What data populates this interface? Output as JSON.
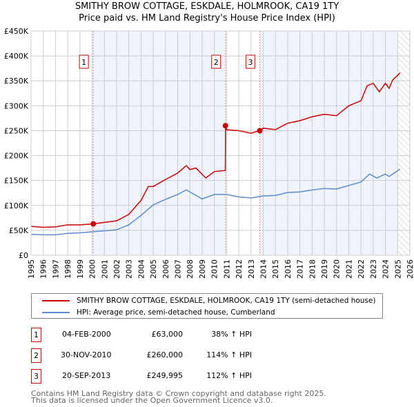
{
  "chart_data": {
    "type": "line",
    "title": "SMITHY BROW COTTAGE, ESKDALE, HOLMROOK, CA19 1TY",
    "subtitle": "Price paid vs. HM Land Registry's House Price Index (HPI)",
    "xlim": [
      1995,
      2026
    ],
    "ylim": [
      0,
      450000
    ],
    "x_ticks": [
      "1995",
      "1996",
      "1997",
      "1998",
      "1999",
      "2000",
      "2001",
      "2002",
      "2003",
      "2004",
      "2005",
      "2006",
      "2007",
      "2008",
      "2009",
      "2010",
      "2011",
      "2012",
      "2013",
      "2014",
      "2015",
      "2016",
      "2017",
      "2018",
      "2019",
      "2020",
      "2021",
      "2022",
      "2023",
      "2024",
      "2025",
      "2026"
    ],
    "y_ticks": [
      {
        "v": 0,
        "label": "£0"
      },
      {
        "v": 50000,
        "label": "£50K"
      },
      {
        "v": 100000,
        "label": "£100K"
      },
      {
        "v": 150000,
        "label": "£150K"
      },
      {
        "v": 200000,
        "label": "£200K"
      },
      {
        "v": 250000,
        "label": "£250K"
      },
      {
        "v": 300000,
        "label": "£300K"
      },
      {
        "v": 350000,
        "label": "£350K"
      },
      {
        "v": 400000,
        "label": "£400K"
      },
      {
        "v": 450000,
        "label": "£450K"
      }
    ],
    "grid": true,
    "series": [
      {
        "name": "SMITHY BROW COTTAGE, ESKDALE, HOLMROOK, CA19 1TY (semi-detached house)",
        "color": "#cc0000",
        "x": [
          1995,
          1996,
          1997,
          1998,
          1999,
          2000.1,
          2001,
          2002,
          2003,
          2004,
          2004.6,
          2005,
          2006,
          2007,
          2007.7,
          2008,
          2008.5,
          2009.3,
          2010,
          2010.9,
          2010.92,
          2011,
          2012,
          2013,
          2013.7,
          2014,
          2015,
          2016,
          2017,
          2018,
          2019,
          2020,
          2021,
          2022,
          2022.5,
          2023,
          2023.5,
          2024,
          2024.3,
          2024.6,
          2025.2
        ],
        "y": [
          58000,
          56000,
          57000,
          61000,
          61000,
          63000,
          66000,
          69000,
          82000,
          110000,
          138000,
          138000,
          152000,
          165000,
          180000,
          172000,
          175000,
          155000,
          168000,
          170000,
          260000,
          252000,
          250000,
          245000,
          249995,
          255000,
          252000,
          265000,
          270000,
          278000,
          283000,
          280000,
          300000,
          310000,
          340000,
          345000,
          328000,
          345000,
          335000,
          352000,
          366000
        ]
      },
      {
        "name": "HPI: Average price, semi-detached house, Cumberland",
        "color": "#5b8bd0",
        "x": [
          1995,
          1996,
          1997,
          1998,
          1999,
          2000,
          2001,
          2002,
          2003,
          2004,
          2005,
          2006,
          2007,
          2007.7,
          2008,
          2009,
          2010,
          2011,
          2012,
          2013,
          2014,
          2015,
          2016,
          2017,
          2018,
          2019,
          2020,
          2021,
          2022,
          2022.7,
          2023.3,
          2024,
          2024.3,
          2025.2
        ],
        "y": [
          42000,
          41000,
          41000,
          44000,
          45000,
          47000,
          49000,
          51000,
          61000,
          80000,
          101000,
          112000,
          122000,
          131000,
          127000,
          113000,
          122000,
          122000,
          117000,
          115000,
          119000,
          120000,
          126000,
          127000,
          131000,
          134000,
          133000,
          140000,
          147000,
          163000,
          155000,
          163000,
          158000,
          173000
        ]
      }
    ],
    "sales": [
      {
        "id": "1",
        "x": 2000.09,
        "y": 63000
      },
      {
        "id": "2",
        "x": 2010.91,
        "y": 260000
      },
      {
        "id": "3",
        "x": 2013.72,
        "y": 249995
      }
    ],
    "data_end": 2025.0,
    "legend_position": "below"
  },
  "table": [
    {
      "id": "1",
      "date": "04-FEB-2000",
      "price": "£63,000",
      "hpi": "38% ↑ HPI"
    },
    {
      "id": "2",
      "date": "30-NOV-2010",
      "price": "£260,000",
      "hpi": "114% ↑ HPI"
    },
    {
      "id": "3",
      "date": "20-SEP-2013",
      "price": "£249,995",
      "hpi": "112% ↑ HPI"
    }
  ],
  "footer": [
    "Contains HM Land Registry data © Crown copyright and database right 2025.",
    "This data is licensed under the Open Government Licence v3.0."
  ]
}
